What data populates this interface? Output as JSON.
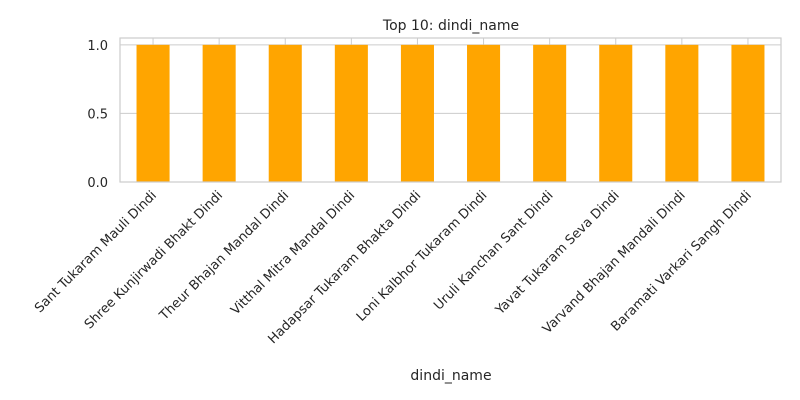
{
  "chart_data": {
    "type": "bar",
    "title": "Top 10: dindi_name",
    "xlabel": "dindi_name",
    "ylabel": "",
    "categories": [
      "Sant Tukaram Mauli Dindi",
      "Shree Kunjirwadi Bhakt Dindi",
      "Theur Bhajan Mandal Dindi",
      "Vitthal Mitra Mandal Dindi",
      "Hadapsar Tukaram Bhakta Dindi",
      "Loni Kalbhor Tukaram Dindi",
      "Uruli Kanchan Sant Dindi",
      "Yavat Tukaram Seva Dindi",
      "Varvand Bhajan Mandali Dindi",
      "Baramati Varkari Sangh Dindi"
    ],
    "values": [
      1,
      1,
      1,
      1,
      1,
      1,
      1,
      1,
      1,
      1
    ],
    "ylim": [
      0,
      1.05
    ],
    "yticks": [
      "0.0",
      "0.5",
      "1.0"
    ],
    "ytick_values": [
      0,
      0.5,
      1.0
    ],
    "grid": true,
    "legend": "none",
    "bar_color": "#FFA500",
    "grid_color": "#CCCCCC",
    "axes_edge_color": "#CCCCCC"
  }
}
